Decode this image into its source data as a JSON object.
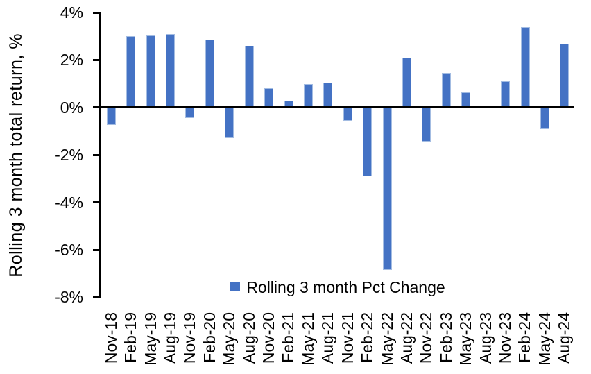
{
  "chart_data": {
    "type": "bar",
    "title": "",
    "xlabel": "",
    "ylabel": "Rolling 3 month total return, %",
    "legend": {
      "label": "Rolling 3 month Pct Change",
      "position": "bottom-center-inside"
    },
    "categories": [
      "Nov-18",
      "Feb-19",
      "May-19",
      "Aug-19",
      "Nov-19",
      "Feb-20",
      "May-20",
      "Aug-20",
      "Nov-20",
      "Feb-21",
      "May-21",
      "Aug-21",
      "Nov-21",
      "Feb-22",
      "May-22",
      "Aug-22",
      "Nov-22",
      "Feb-23",
      "May-23",
      "Aug-23",
      "Nov-23",
      "Feb-24",
      "May-24",
      "Aug-24"
    ],
    "values": [
      -0.75,
      3.0,
      3.05,
      3.1,
      -0.45,
      2.85,
      -1.3,
      2.6,
      0.8,
      0.3,
      1.0,
      1.05,
      -0.55,
      -2.9,
      -6.85,
      2.1,
      -1.45,
      1.45,
      0.65,
      0,
      1.1,
      3.4,
      -0.9,
      2.7
    ],
    "ylim": [
      -8,
      4
    ],
    "ytick_step": 2,
    "ytick_labels": [
      "4%",
      "2%",
      "0%",
      "-2%",
      "-4%",
      "-6%",
      "-8%"
    ],
    "grid": false,
    "colors": {
      "bar_fill": "#4472C4",
      "bar_edge": "#A3BCE2",
      "axis": "#000000",
      "text": "#000000"
    }
  }
}
